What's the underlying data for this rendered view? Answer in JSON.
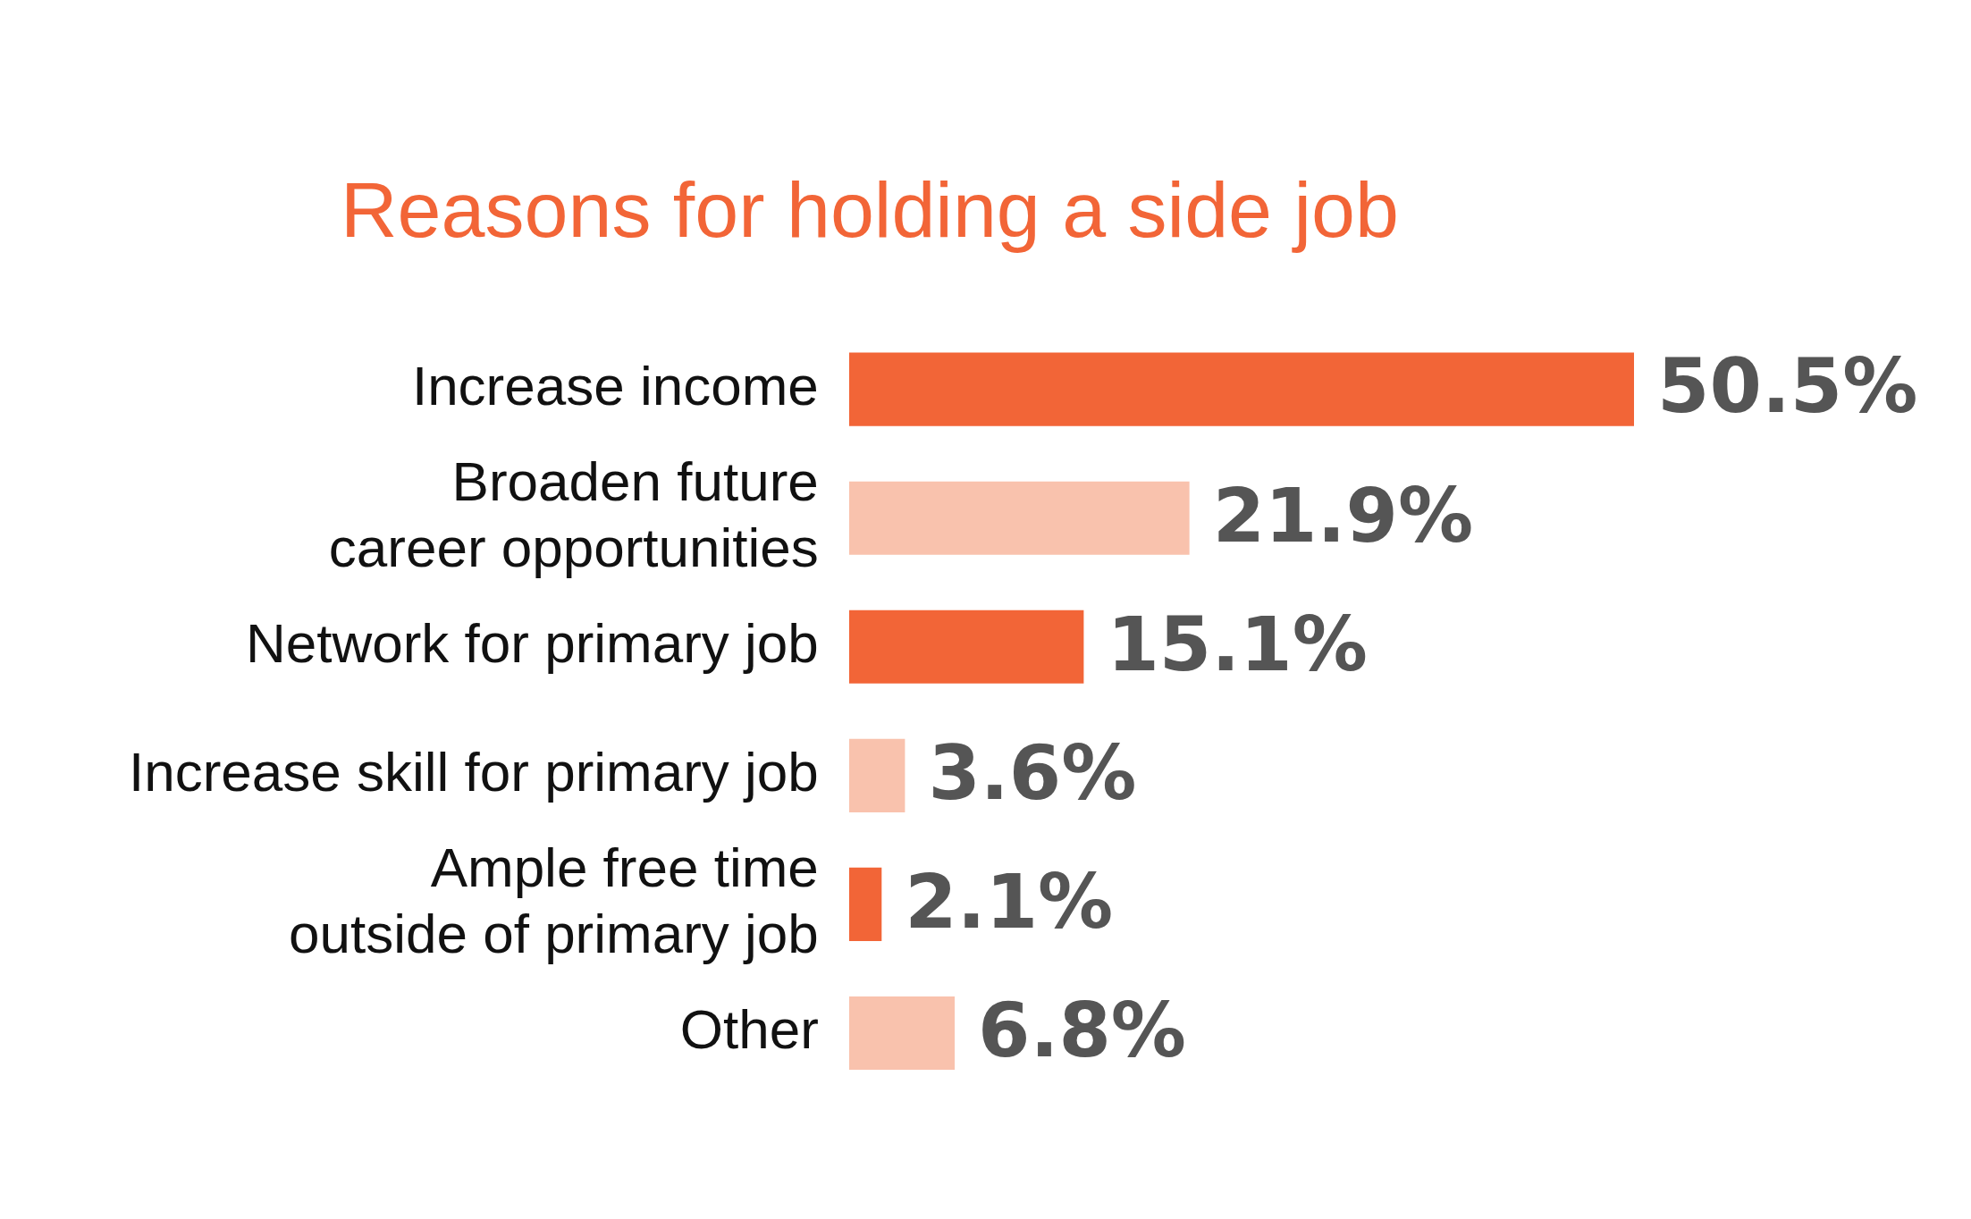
{
  "chart_data": {
    "type": "bar",
    "orientation": "horizontal",
    "title": "Reasons for holding a side job",
    "categories": [
      "Increase income",
      "Broaden future career opportunities",
      "Network for primary job",
      "Increase skill for primary job",
      "Ample free time outside of primary job",
      "Other"
    ],
    "values": [
      50.5,
      21.9,
      15.1,
      3.6,
      2.1,
      6.8
    ],
    "colors": [
      "#f26537",
      "#f9c2ad",
      "#f26537",
      "#f9c2ad",
      "#f26537",
      "#f9c2ad"
    ],
    "value_labels": [
      "50.5%",
      "21.9%",
      "15.1%",
      "3.6%",
      "2.1%",
      "6.8%"
    ],
    "legend": false
  }
}
